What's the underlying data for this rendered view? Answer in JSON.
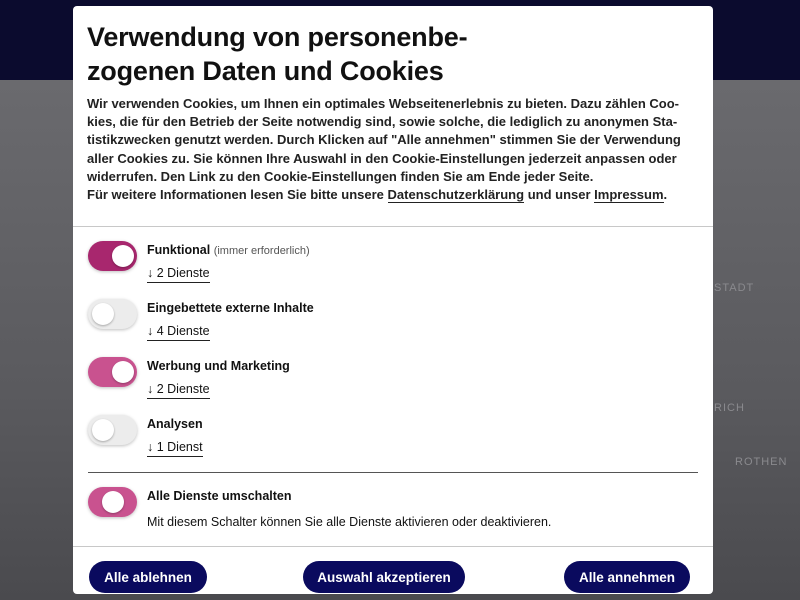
{
  "background": {
    "words": [
      "STADT",
      "RICH",
      "ROTHEN"
    ]
  },
  "dialog": {
    "title_lines": [
      "Verwendung von personenbe-",
      "zogenen Daten und Cookies"
    ],
    "intro_lines": [
      "Wir verwenden Cookies, um Ihnen ein optimales Webseitenerlebnis zu bieten. Dazu zählen Coo-",
      "kies, die für den Betrieb der Seite notwendig sind, sowie solche, die lediglich zu anonymen Sta-",
      "tistikzwecken genutzt werden. Durch Klicken auf \"Alle annehmen\" stimmen Sie der Verwendung",
      "aller Cookies zu. Sie können Ihre Auswahl in den Cookie-Einstellungen jederzeit anpassen oder",
      "widerrufen. Den Link zu den Cookie-Einstellungen finden Sie am Ende jeder Seite."
    ],
    "info_line": {
      "before": "Für weitere Informationen lesen Sie bitte unsere",
      "privacy_link": "Datenschutzerklärung",
      "middle": "und unser",
      "imprint_link": "Impressum",
      "end": "."
    },
    "categories": [
      {
        "label": "Funktional",
        "note": "(immer erforderlich)",
        "services": "↓ 2 Dienste",
        "enabled": true
      },
      {
        "label": "Eingebettete externe Inhalte",
        "services": "↓ 4 Dienste",
        "enabled": false
      },
      {
        "label": "Werbung und Marketing",
        "services": "↓ 2 Dienste",
        "enabled": true
      },
      {
        "label": "Analysen",
        "services": "↓ 1 Dienst",
        "enabled": false
      }
    ],
    "toggle_all": {
      "label": "Alle Dienste umschalten",
      "description": "Mit diesem Schalter können Sie alle Dienste aktivieren oder deaktivieren.",
      "enabled": true
    },
    "buttons": [
      "Alle ablehnen",
      "Auswahl akzeptieren",
      "Alle annehmen"
    ]
  }
}
